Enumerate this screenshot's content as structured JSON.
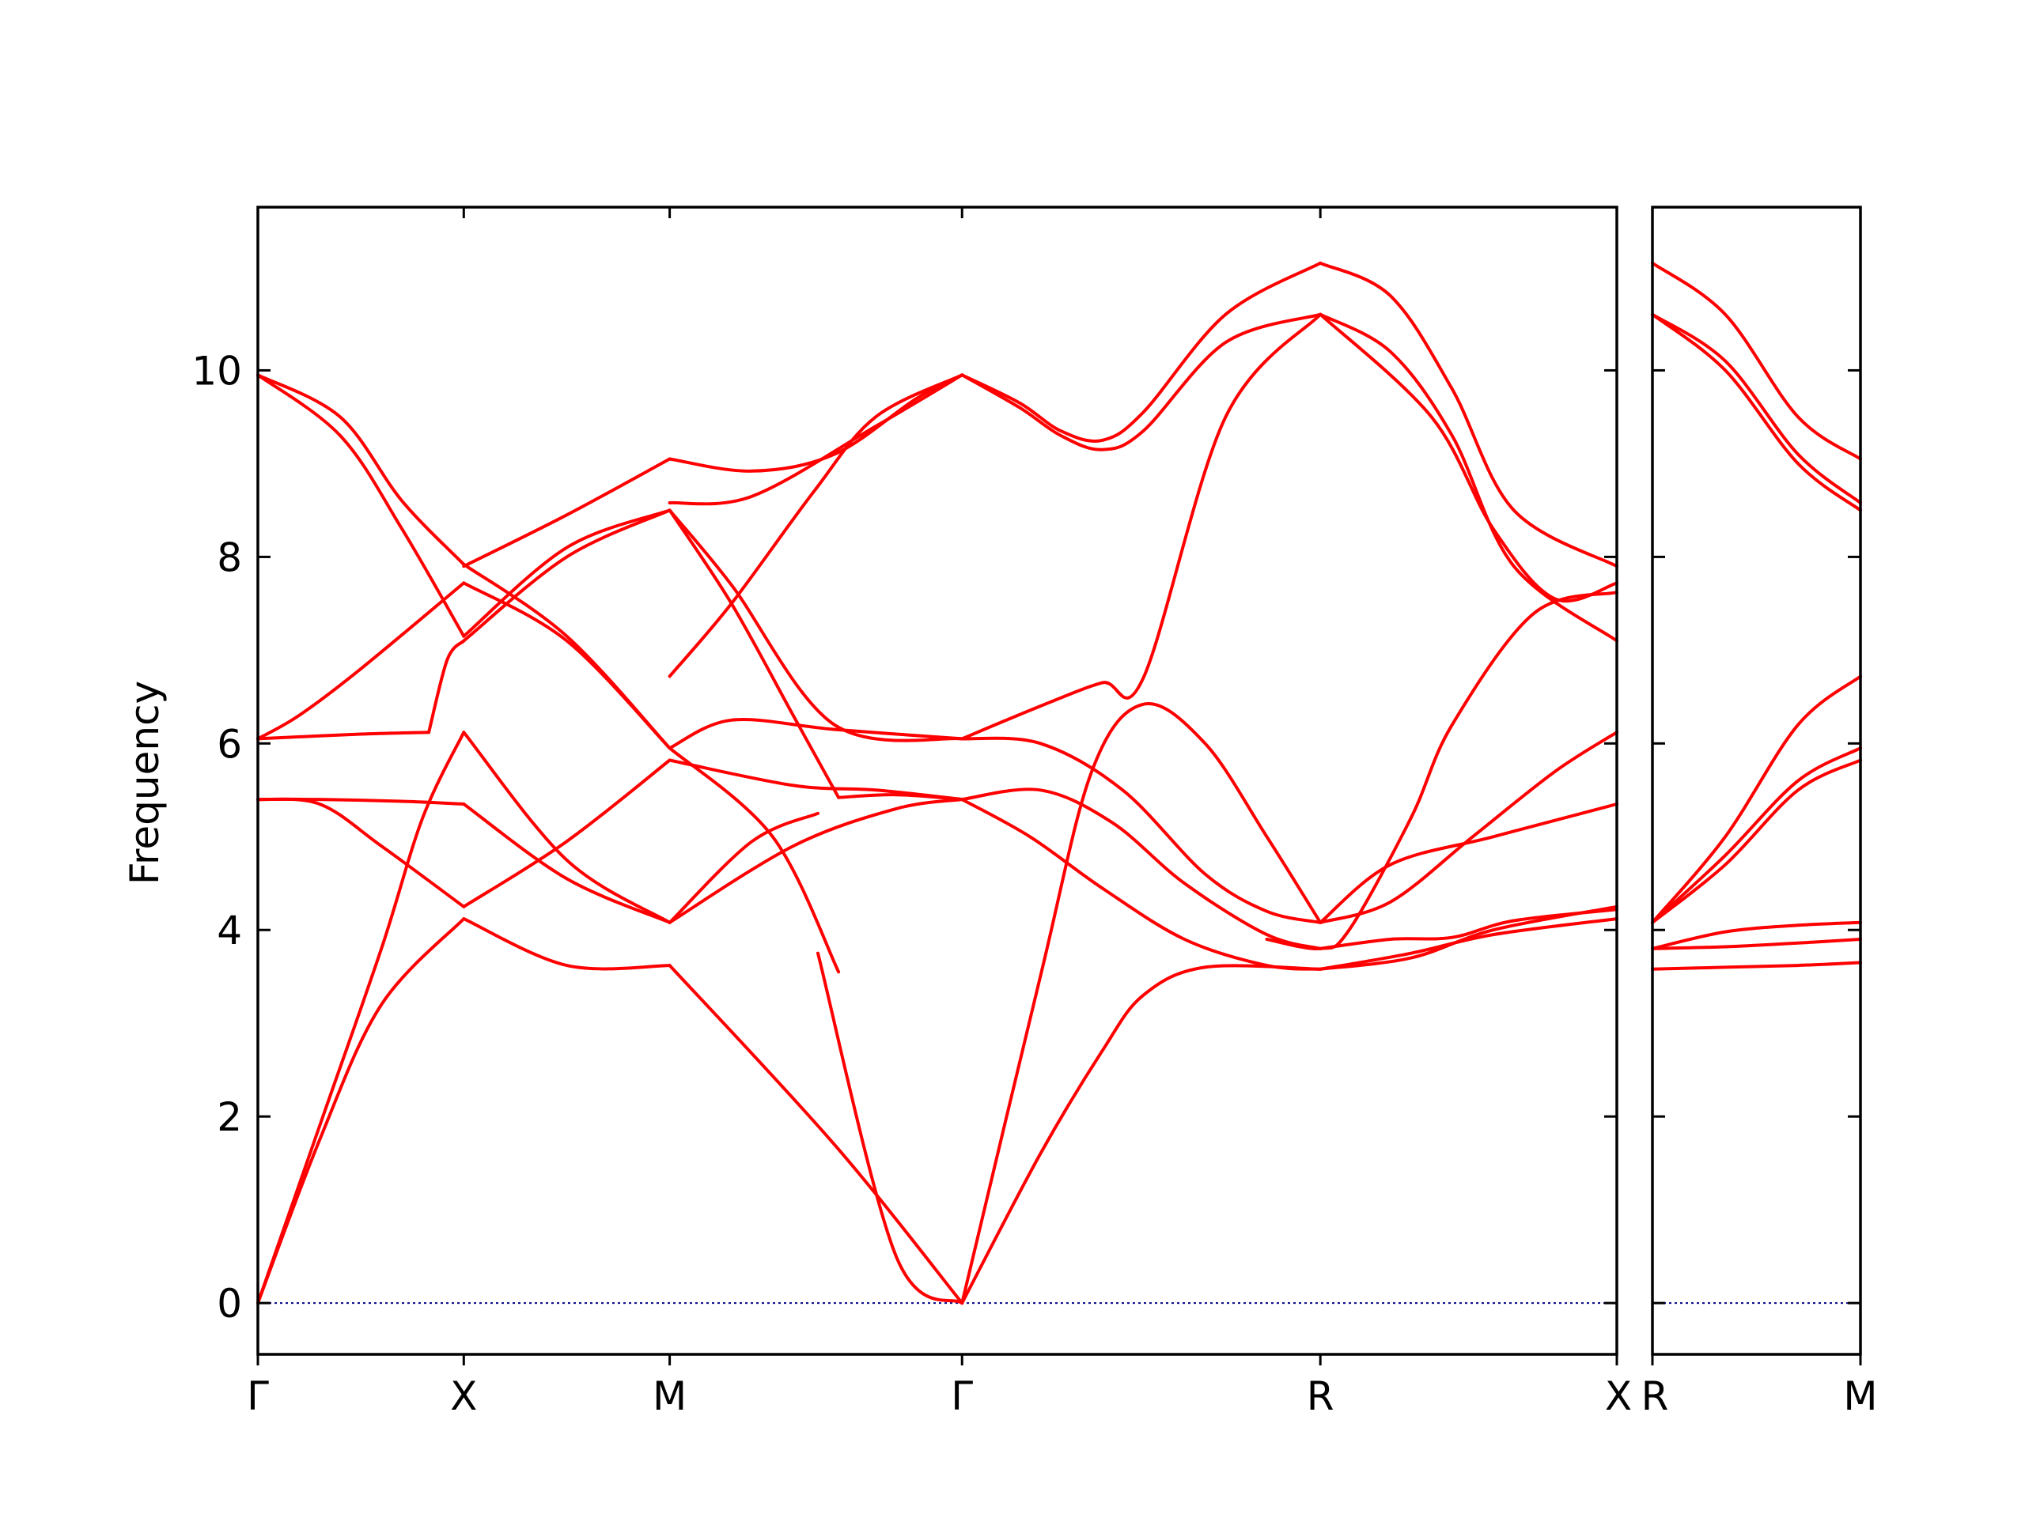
{
  "chart_data": {
    "type": "line",
    "title": "",
    "ylabel": "Frequency",
    "ylim": [
      -0.55,
      11.75
    ],
    "yticks": [
      "0",
      "2",
      "4",
      "6",
      "8",
      "10"
    ],
    "colors": {
      "bands": "#ff0000",
      "zero_line": "#00008b",
      "frame": "#000000"
    },
    "zero_line": {
      "y": 0,
      "style": "dotted"
    },
    "panels": [
      {
        "x_range": [
          0,
          6.6
        ],
        "labels": [
          {
            "x": 0,
            "text": "Γ"
          },
          {
            "x": 1.0,
            "text": "X"
          },
          {
            "x": 2.0,
            "text": "M"
          },
          {
            "x": 3.42,
            "text": "Γ"
          },
          {
            "x": 5.16,
            "text": "R"
          },
          {
            "x": 6.6,
            "text": "X"
          }
        ],
        "series": [
          {
            "x": [
              0,
              0.3,
              0.6,
              1.0
            ],
            "y": [
              0,
              1.75,
              3.2,
              4.12
            ]
          },
          {
            "x": [
              1.0,
              1.5,
              2.0
            ],
            "y": [
              4.12,
              3.62,
              3.62
            ]
          },
          {
            "x": [
              2.0,
              2.8,
              3.42
            ],
            "y": [
              3.62,
              1.7,
              0
            ]
          },
          {
            "x": [
              0,
              0.3,
              0.6,
              0.8,
              1.0
            ],
            "y": [
              0,
              1.9,
              3.8,
              5.2,
              6.12
            ]
          },
          {
            "x": [
              1.0,
              1.5,
              2.0
            ],
            "y": [
              6.12,
              4.75,
              4.08
            ]
          },
          {
            "x": [
              2.0,
              2.6,
              3.1,
              3.42
            ],
            "y": [
              4.08,
              4.9,
              5.3,
              5.4
            ]
          },
          {
            "x": [
              0,
              0.5,
              0.83
            ],
            "y": [
              6.05,
              6.1,
              6.12
            ]
          },
          {
            "x": [
              0.83,
              0.92,
              1.0
            ],
            "y": [
              6.12,
              6.9,
              7.1
            ]
          },
          {
            "x": [
              1.0,
              1.5,
              2.0
            ],
            "y": [
              7.1,
              8.0,
              8.5
            ]
          },
          {
            "x": [
              2.0,
              2.3,
              2.8,
              3.42
            ],
            "y": [
              8.5,
              7.7,
              6.2,
              6.05
            ]
          },
          {
            "x": [
              0,
              0.2,
              0.5,
              1.0
            ],
            "y": [
              6.05,
              6.3,
              6.8,
              7.72
            ]
          },
          {
            "x": [
              1.0,
              1.5,
              2.0
            ],
            "y": [
              7.72,
              7.1,
              5.95
            ]
          },
          {
            "x": [
              2.0,
              2.3,
              2.8,
              3.42
            ],
            "y": [
              5.95,
              6.25,
              6.15,
              6.05
            ]
          },
          {
            "x": [
              0,
              0.3,
              0.7,
              1.0
            ],
            "y": [
              5.4,
              5.4,
              5.38,
              5.35
            ]
          },
          {
            "x": [
              1.0,
              1.5,
              2.0
            ],
            "y": [
              5.35,
              4.55,
              4.08
            ]
          },
          {
            "x": [
              2.0,
              2.4,
              2.72
            ],
            "y": [
              4.08,
              4.95,
              5.25
            ]
          },
          {
            "x": [
              2.72,
              3.1,
              3.42
            ],
            "y": [
              3.75,
              0.5,
              0
            ]
          },
          {
            "x": [
              0,
              0.3,
              0.6,
              1.0
            ],
            "y": [
              5.4,
              5.35,
              4.9,
              4.25
            ]
          },
          {
            "x": [
              1.0,
              1.5,
              2.0
            ],
            "y": [
              4.25,
              4.95,
              5.82
            ]
          },
          {
            "x": [
              2.0,
              2.6,
              3.0,
              3.42
            ],
            "y": [
              5.82,
              5.55,
              5.5,
              5.4
            ]
          },
          {
            "x": [
              0,
              0.4,
              0.7,
              1.0
            ],
            "y": [
              9.95,
              9.5,
              8.6,
              7.92
            ]
          },
          {
            "x": [
              1.0,
              1.5,
              2.0
            ],
            "y": [
              7.92,
              7.15,
              5.95
            ]
          },
          {
            "x": [
              2.0,
              2.5,
              2.82
            ],
            "y": [
              5.95,
              5.0,
              3.55
            ]
          },
          {
            "x": [
              0,
              0.4,
              0.7,
              1.0
            ],
            "y": [
              9.95,
              9.3,
              8.3,
              7.15
            ]
          },
          {
            "x": [
              1.0,
              1.5,
              2.0
            ],
            "y": [
              7.15,
              8.1,
              8.5
            ]
          },
          {
            "x": [
              2.0,
              2.3,
              2.6,
              2.82
            ],
            "y": [
              8.5,
              7.5,
              6.3,
              5.42
            ]
          },
          {
            "x": [
              2.82,
              3.1,
              3.42
            ],
            "y": [
              5.42,
              5.45,
              5.4
            ]
          },
          {
            "x": [
              1.0,
              1.5,
              2.0
            ],
            "y": [
              7.9,
              8.45,
              9.05
            ]
          },
          {
            "x": [
              2.0,
              2.4,
              2.8,
              3.2,
              3.42
            ],
            "y": [
              9.05,
              8.92,
              9.1,
              9.7,
              9.95
            ]
          },
          {
            "x": [
              2.0,
              2.4,
              3.0,
              3.42
            ],
            "y": [
              8.58,
              8.65,
              9.4,
              9.95
            ]
          },
          {
            "x": [
              2.0,
              2.3,
              2.7,
              3.0,
              3.42
            ],
            "y": [
              6.72,
              7.5,
              8.7,
              9.5,
              9.95
            ]
          },
          {
            "x": [
              3.42,
              3.8,
              4.1,
              4.3,
              4.6,
              5.16
            ],
            "y": [
              0,
              1.6,
              2.7,
              3.3,
              3.6,
              3.58
            ]
          },
          {
            "x": [
              5.16,
              5.6,
              6.0,
              6.6
            ],
            "y": [
              3.58,
              3.75,
              3.95,
              4.12
            ]
          },
          {
            "x": [
              3.42,
              3.75,
              4.1,
              4.5,
              4.9,
              5.16
            ],
            "y": [
              5.4,
              5.0,
              4.45,
              3.9,
              3.62,
              3.58
            ]
          },
          {
            "x": [
              5.16,
              5.6,
              6.0,
              6.6
            ],
            "y": [
              3.58,
              3.7,
              4.0,
              4.25
            ]
          },
          {
            "x": [
              3.42,
              3.8,
              4.15,
              4.5,
              4.9,
              5.16
            ],
            "y": [
              5.4,
              5.5,
              5.15,
              4.5,
              3.95,
              3.8
            ]
          },
          {
            "x": [
              5.16,
              5.5,
              5.8,
              6.1,
              6.6
            ],
            "y": [
              3.8,
              3.9,
              3.92,
              4.1,
              4.22
            ]
          },
          {
            "x": [
              3.42,
              3.8,
              4.05,
              4.3,
              4.6,
              4.9,
              5.16
            ],
            "y": [
              0,
              3.5,
              5.7,
              6.42,
              6.0,
              5.0,
              4.08
            ]
          },
          {
            "x": [
              5.16,
              5.5,
              5.9,
              6.3,
              6.6
            ],
            "y": [
              4.08,
              4.3,
              5.0,
              5.7,
              6.12
            ]
          },
          {
            "x": [
              3.42,
              3.8,
              4.2,
              4.6,
              4.9,
              5.16
            ],
            "y": [
              6.05,
              6.0,
              5.5,
              4.6,
              4.2,
              4.08
            ]
          },
          {
            "x": [
              5.16,
              5.5,
              6.0,
              6.6
            ],
            "y": [
              4.08,
              4.7,
              5.0,
              5.35
            ]
          },
          {
            "x": [
              3.42,
              3.8,
              4.1,
              4.3,
              4.7,
              5.16
            ],
            "y": [
              6.05,
              6.4,
              6.65,
              6.7,
              9.5,
              10.6
            ]
          },
          {
            "x": [
              5.16,
              5.7,
              6.0,
              6.3,
              6.6
            ],
            "y": [
              10.6,
              9.5,
              8.3,
              7.55,
              7.72
            ]
          },
          {
            "x": [
              3.42,
              3.7,
              3.9,
              4.1,
              4.3,
              4.7,
              5.16
            ],
            "y": [
              9.95,
              9.6,
              9.3,
              9.15,
              9.35,
              10.3,
              10.6
            ]
          },
          {
            "x": [
              5.16,
              5.5,
              5.8,
              6.1,
              6.6
            ],
            "y": [
              10.6,
              10.2,
              9.3,
              7.9,
              7.1
            ]
          },
          {
            "x": [
              3.42,
              3.7,
              3.9,
              4.1,
              4.3,
              4.7,
              5.16
            ],
            "y": [
              9.95,
              9.65,
              9.35,
              9.25,
              9.55,
              10.6,
              11.15
            ]
          },
          {
            "x": [
              5.16,
              5.5,
              5.8,
              6.1,
              6.6
            ],
            "y": [
              11.15,
              10.8,
              9.8,
              8.5,
              7.9
            ]
          },
          {
            "x": [
              4.9,
              5.16,
              5.3,
              5.6,
              5.8,
              6.2,
              6.6
            ],
            "y": [
              3.9,
              3.8,
              4.0,
              5.2,
              6.2,
              7.4,
              7.62
            ]
          }
        ]
      },
      {
        "x_range": [
          0,
          1
        ],
        "labels": [
          {
            "x": 0,
            "text": "R"
          },
          {
            "x": 1,
            "text": "M"
          }
        ],
        "series": [
          {
            "x": [
              0,
              0.35,
              0.7,
              1.0
            ],
            "y": [
              3.58,
              3.6,
              3.62,
              3.65
            ]
          },
          {
            "x": [
              0,
              0.35,
              0.7,
              1.0
            ],
            "y": [
              3.8,
              3.82,
              3.86,
              3.9
            ]
          },
          {
            "x": [
              0,
              0.35,
              0.7,
              1.0
            ],
            "y": [
              3.8,
              3.98,
              4.05,
              4.08
            ]
          },
          {
            "x": [
              0,
              0.35,
              0.7,
              1.0
            ],
            "y": [
              4.08,
              4.7,
              5.5,
              5.82
            ]
          },
          {
            "x": [
              0,
              0.35,
              0.7,
              1.0
            ],
            "y": [
              4.08,
              4.8,
              5.6,
              5.95
            ]
          },
          {
            "x": [
              0,
              0.35,
              0.7,
              1.0
            ],
            "y": [
              4.08,
              5.0,
              6.2,
              6.72
            ]
          },
          {
            "x": [
              0,
              0.35,
              0.7,
              1.0
            ],
            "y": [
              10.6,
              10.0,
              9.0,
              8.5
            ]
          },
          {
            "x": [
              0,
              0.35,
              0.7,
              1.0
            ],
            "y": [
              10.6,
              10.1,
              9.1,
              8.58
            ]
          },
          {
            "x": [
              0,
              0.35,
              0.7,
              1.0
            ],
            "y": [
              11.15,
              10.6,
              9.5,
              9.05
            ]
          }
        ]
      }
    ]
  }
}
